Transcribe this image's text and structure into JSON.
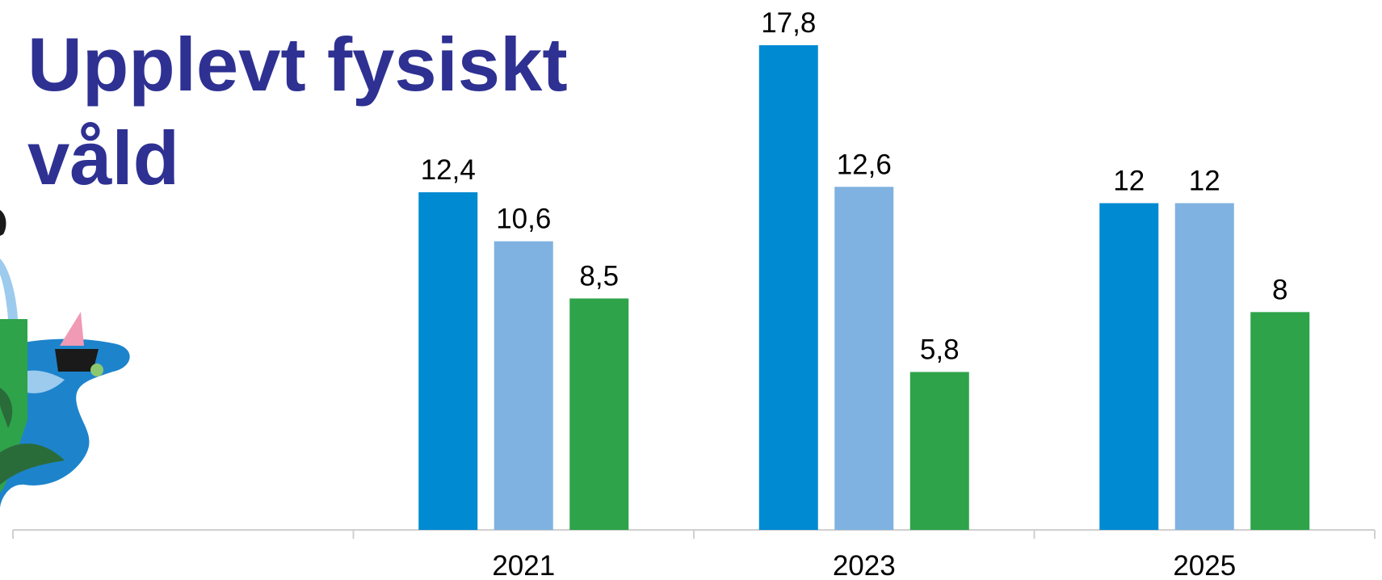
{
  "chart_data": {
    "type": "bar",
    "title": "Upplevt fysiskt våld",
    "categories": [
      null,
      "2021",
      "2023",
      "2025"
    ],
    "series": [
      {
        "color": "#008ad2",
        "values": [
          null,
          12.4,
          17.8,
          12
        ],
        "value_labels": [
          null,
          "12,4",
          "17,8",
          "12"
        ]
      },
      {
        "color": "#7fb2e0",
        "values": [
          null,
          10.6,
          12.6,
          12
        ],
        "value_labels": [
          null,
          "10,6",
          "12,6",
          "12"
        ]
      },
      {
        "color": "#2ea34a",
        "values": [
          null,
          8.5,
          5.8,
          8
        ],
        "value_labels": [
          null,
          "8,5",
          "5,8",
          "8"
        ]
      }
    ]
  }
}
